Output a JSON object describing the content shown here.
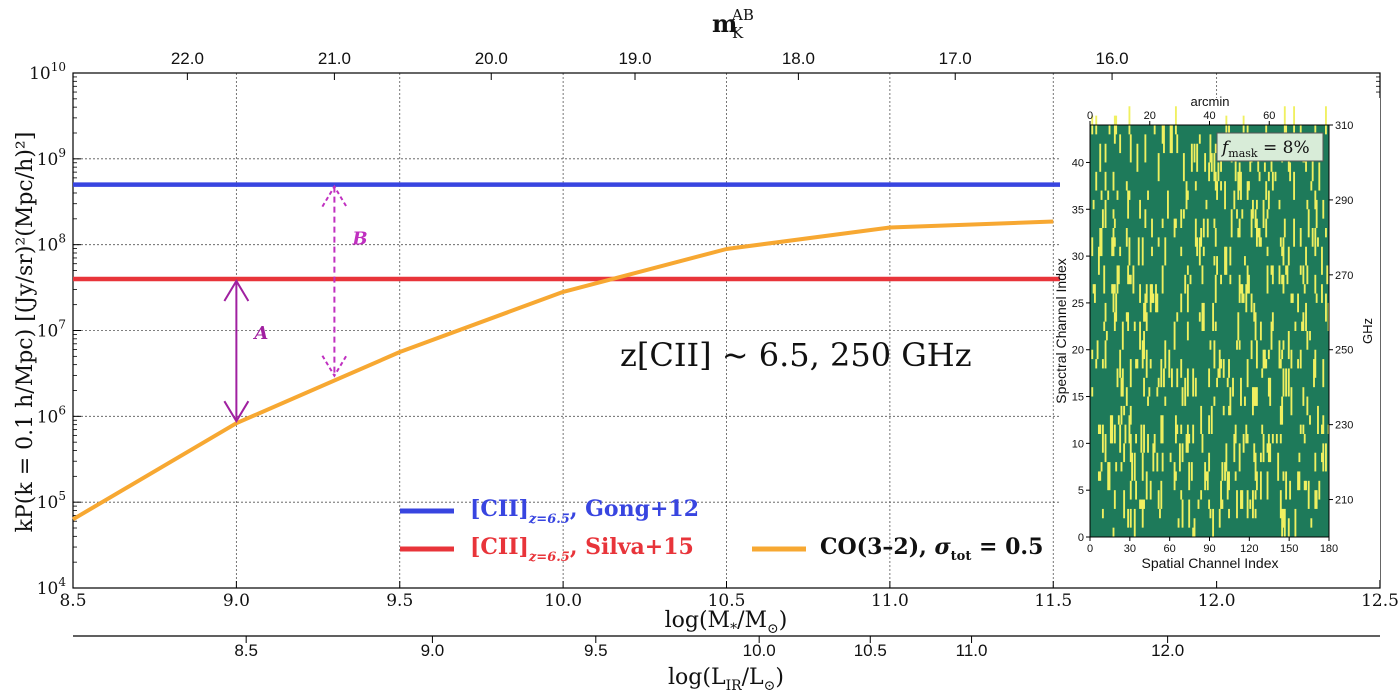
{
  "chart_data": {
    "type": "line",
    "xaxis_bottom": {
      "label_main": "log(M",
      "label_sub1": "*",
      "label_mid": "/M",
      "label_sub2": "⊙",
      "label_end": ")",
      "range": [
        8.5,
        12.5
      ],
      "ticks": [
        "8.5",
        "9.0",
        "9.5",
        "10.0",
        "10.5",
        "11.0",
        "11.5",
        "12.0",
        "12.5"
      ]
    },
    "xaxis_bottom2": {
      "label_main": "log(L",
      "label_sub1": "IR",
      "label_mid": "/L",
      "label_sub2": "⊙",
      "label_end": ")",
      "ticks": [
        {
          "value": "8.5",
          "at_mstar": 9.03
        },
        {
          "value": "9.0",
          "at_mstar": 9.6
        },
        {
          "value": "9.5",
          "at_mstar": 10.1
        },
        {
          "value": "10.0",
          "at_mstar": 10.6
        },
        {
          "value": "10.5",
          "at_mstar": 10.94
        },
        {
          "value": "11.0",
          "at_mstar": 11.25
        },
        {
          "value": "12.0",
          "at_mstar": 11.85
        }
      ]
    },
    "xaxis_top": {
      "label_main": "m",
      "label_sup": "AB",
      "label_sub": "K",
      "ticks": [
        {
          "value": "22.0",
          "at_mstar": 8.85
        },
        {
          "value": "21.0",
          "at_mstar": 9.3
        },
        {
          "value": "20.0",
          "at_mstar": 9.78
        },
        {
          "value": "19.0",
          "at_mstar": 10.22
        },
        {
          "value": "18.0",
          "at_mstar": 10.72
        },
        {
          "value": "17.0",
          "at_mstar": 11.2
        },
        {
          "value": "16.0",
          "at_mstar": 11.68
        }
      ]
    },
    "yaxis": {
      "scale": "log",
      "range_exp": [
        4,
        10
      ],
      "ticks_exp": [
        4,
        5,
        6,
        7,
        8,
        9,
        10
      ],
      "label": "kP(k = 0.1 h/Mpc) [(Jy/sr)²(Mpc/h)²]"
    },
    "series": [
      {
        "name": "[CII]z=6.5, Gong+12",
        "color": "#3845e0",
        "type": "hline",
        "y_log": 8.7
      },
      {
        "name": "[CII]z=6.5, Silva+15",
        "color": "#e8343a",
        "type": "hline",
        "y_log": 7.6
      },
      {
        "name": "CO(3−2), σtot = 0.5",
        "color": "#f7a832",
        "x": [
          8.5,
          9.0,
          9.5,
          10.0,
          10.5,
          11.0,
          11.5
        ],
        "y_log": [
          4.8,
          5.92,
          6.75,
          7.45,
          7.95,
          8.2,
          8.27
        ]
      }
    ],
    "annotations": {
      "A": {
        "label": "A",
        "x": 9.0,
        "y_from": 7.6,
        "y_to": 5.92,
        "style": "solid",
        "color": "#a020a0"
      },
      "B": {
        "label": "B",
        "x": 9.3,
        "y_from": 8.7,
        "y_to": 6.45,
        "style": "dashed",
        "color": "#c030c0"
      },
      "redshift_text": "z[CII] ~ 6.5,  250 GHz"
    },
    "legend": {
      "gong_main": "[CII]",
      "gong_sub": "z=6.5",
      "gong_tail": ", Gong+12",
      "silva_main": "[CII]",
      "silva_sub": "z=6.5",
      "silva_tail": ", Silva+15",
      "co_text": "CO(3–2), ",
      "co_sigma": "σ",
      "co_sigma_sub": "tot",
      "co_eq": " = 0.5"
    },
    "grid": true
  },
  "inset": {
    "top_label": "arcmin",
    "top_ticks": [
      "0",
      "20",
      "40",
      "60"
    ],
    "bottom_label": "Spatial Channel Index",
    "bottom_ticks": [
      "0",
      "30",
      "60",
      "90",
      "120",
      "150",
      "180"
    ],
    "left_label": "Spectral Channel Index",
    "left_ticks": [
      "0",
      "5",
      "10",
      "15",
      "20",
      "25",
      "30",
      "35",
      "40"
    ],
    "right_label": "GHz",
    "right_ticks": [
      "210",
      "230",
      "250",
      "270",
      "290",
      "310"
    ],
    "mask_main": "f",
    "mask_sub": "mask",
    "mask_tail": " = 8%",
    "bg_color": "#1e7a5a",
    "mask_color": "#f0f060"
  }
}
